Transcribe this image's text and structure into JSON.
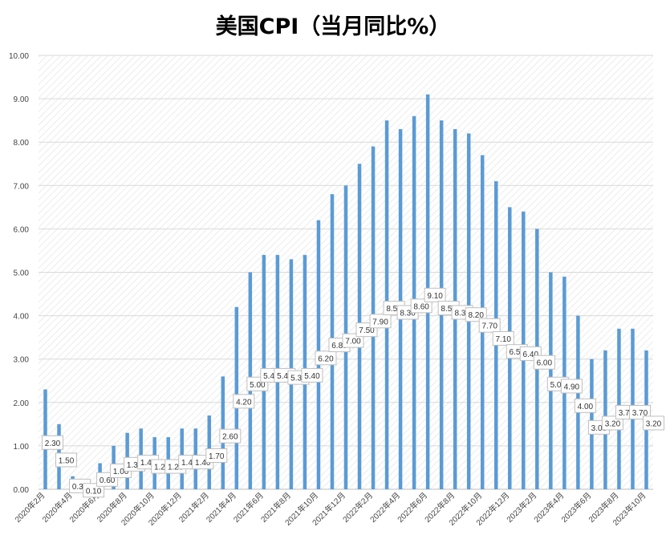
{
  "colors": {
    "bar": "#5B9BD5",
    "grid": "#D9D9D9",
    "hatch": "#E4E4E4",
    "axis": "#BFBFBF"
  },
  "chart_data": {
    "type": "bar",
    "title": "美国CPI（当月同比%）",
    "ylim": [
      0,
      10
    ],
    "y_ticks": [
      "0.00",
      "1.00",
      "2.00",
      "3.00",
      "4.00",
      "5.00",
      "6.00",
      "7.00",
      "8.00",
      "9.00",
      "10.00"
    ],
    "grid": true,
    "categories": [
      "2020年2月",
      "2020年3月",
      "2020年4月",
      "2020年5月",
      "2020年6月",
      "2020年7月",
      "2020年8月",
      "2020年9月",
      "2020年10月",
      "2020年11月",
      "2020年12月",
      "2021年1月",
      "2021年2月",
      "2021年3月",
      "2021年4月",
      "2021年5月",
      "2021年6月",
      "2021年7月",
      "2021年8月",
      "2021年9月",
      "2021年10月",
      "2021年11月",
      "2021年12月",
      "2022年1月",
      "2022年2月",
      "2022年3月",
      "2022年4月",
      "2022年5月",
      "2022年6月",
      "2022年7月",
      "2022年8月",
      "2022年9月",
      "2022年10月",
      "2022年11月",
      "2022年12月",
      "2023年1月",
      "2023年2月",
      "2023年3月",
      "2023年4月",
      "2023年5月",
      "2023年6月",
      "2023年7月",
      "2023年8月",
      "2023年9月",
      "2023年10月"
    ],
    "x_tick_labels_shown": [
      "2020年2月",
      "2020年4月",
      "2020年6月",
      "2020年8月",
      "2020年10月",
      "2020年12月",
      "2021年2月",
      "2021年4月",
      "2021年6月",
      "2021年8月",
      "2021年10月",
      "2021年12月",
      "2022年2月",
      "2022年4月",
      "2022年6月",
      "2022年8月",
      "2022年10月",
      "2022年12月",
      "2023年2月",
      "2023年4月",
      "2023年6月",
      "2023年8月",
      "2023年10月"
    ],
    "values": [
      2.3,
      1.5,
      0.3,
      0.1,
      0.6,
      1.0,
      1.3,
      1.4,
      1.2,
      1.2,
      1.4,
      1.4,
      1.7,
      2.6,
      4.2,
      5.0,
      5.4,
      5.4,
      5.3,
      5.4,
      6.2,
      6.8,
      7.0,
      7.5,
      7.9,
      8.5,
      8.3,
      8.6,
      9.1,
      8.5,
      8.3,
      8.2,
      7.7,
      7.1,
      6.5,
      6.4,
      6.0,
      5.0,
      4.9,
      4.0,
      3.0,
      3.2,
      3.7,
      3.7,
      3.2
    ],
    "data_labels": [
      "2.30",
      "1.50",
      "0.30",
      "0.10",
      "0.60",
      "1.00",
      "1.30",
      "1.40",
      "1.20",
      "1.20",
      "1.40",
      "1.40",
      "1.70",
      "2.60",
      "4.20",
      "5.00",
      "5.40",
      "5.40",
      "5.30",
      "5.40",
      "6.20",
      "6.80",
      "7.00",
      "7.50",
      "7.90",
      "8.50",
      "8.30",
      "8.60",
      "9.10",
      "8.50",
      "8.30",
      "8.20",
      "7.70",
      "7.10",
      "6.50",
      "6.40",
      "6.00",
      "5.00",
      "4.90",
      "4.00",
      "3.00",
      "3.20",
      "3.70",
      "3.70",
      "3.20"
    ]
  }
}
